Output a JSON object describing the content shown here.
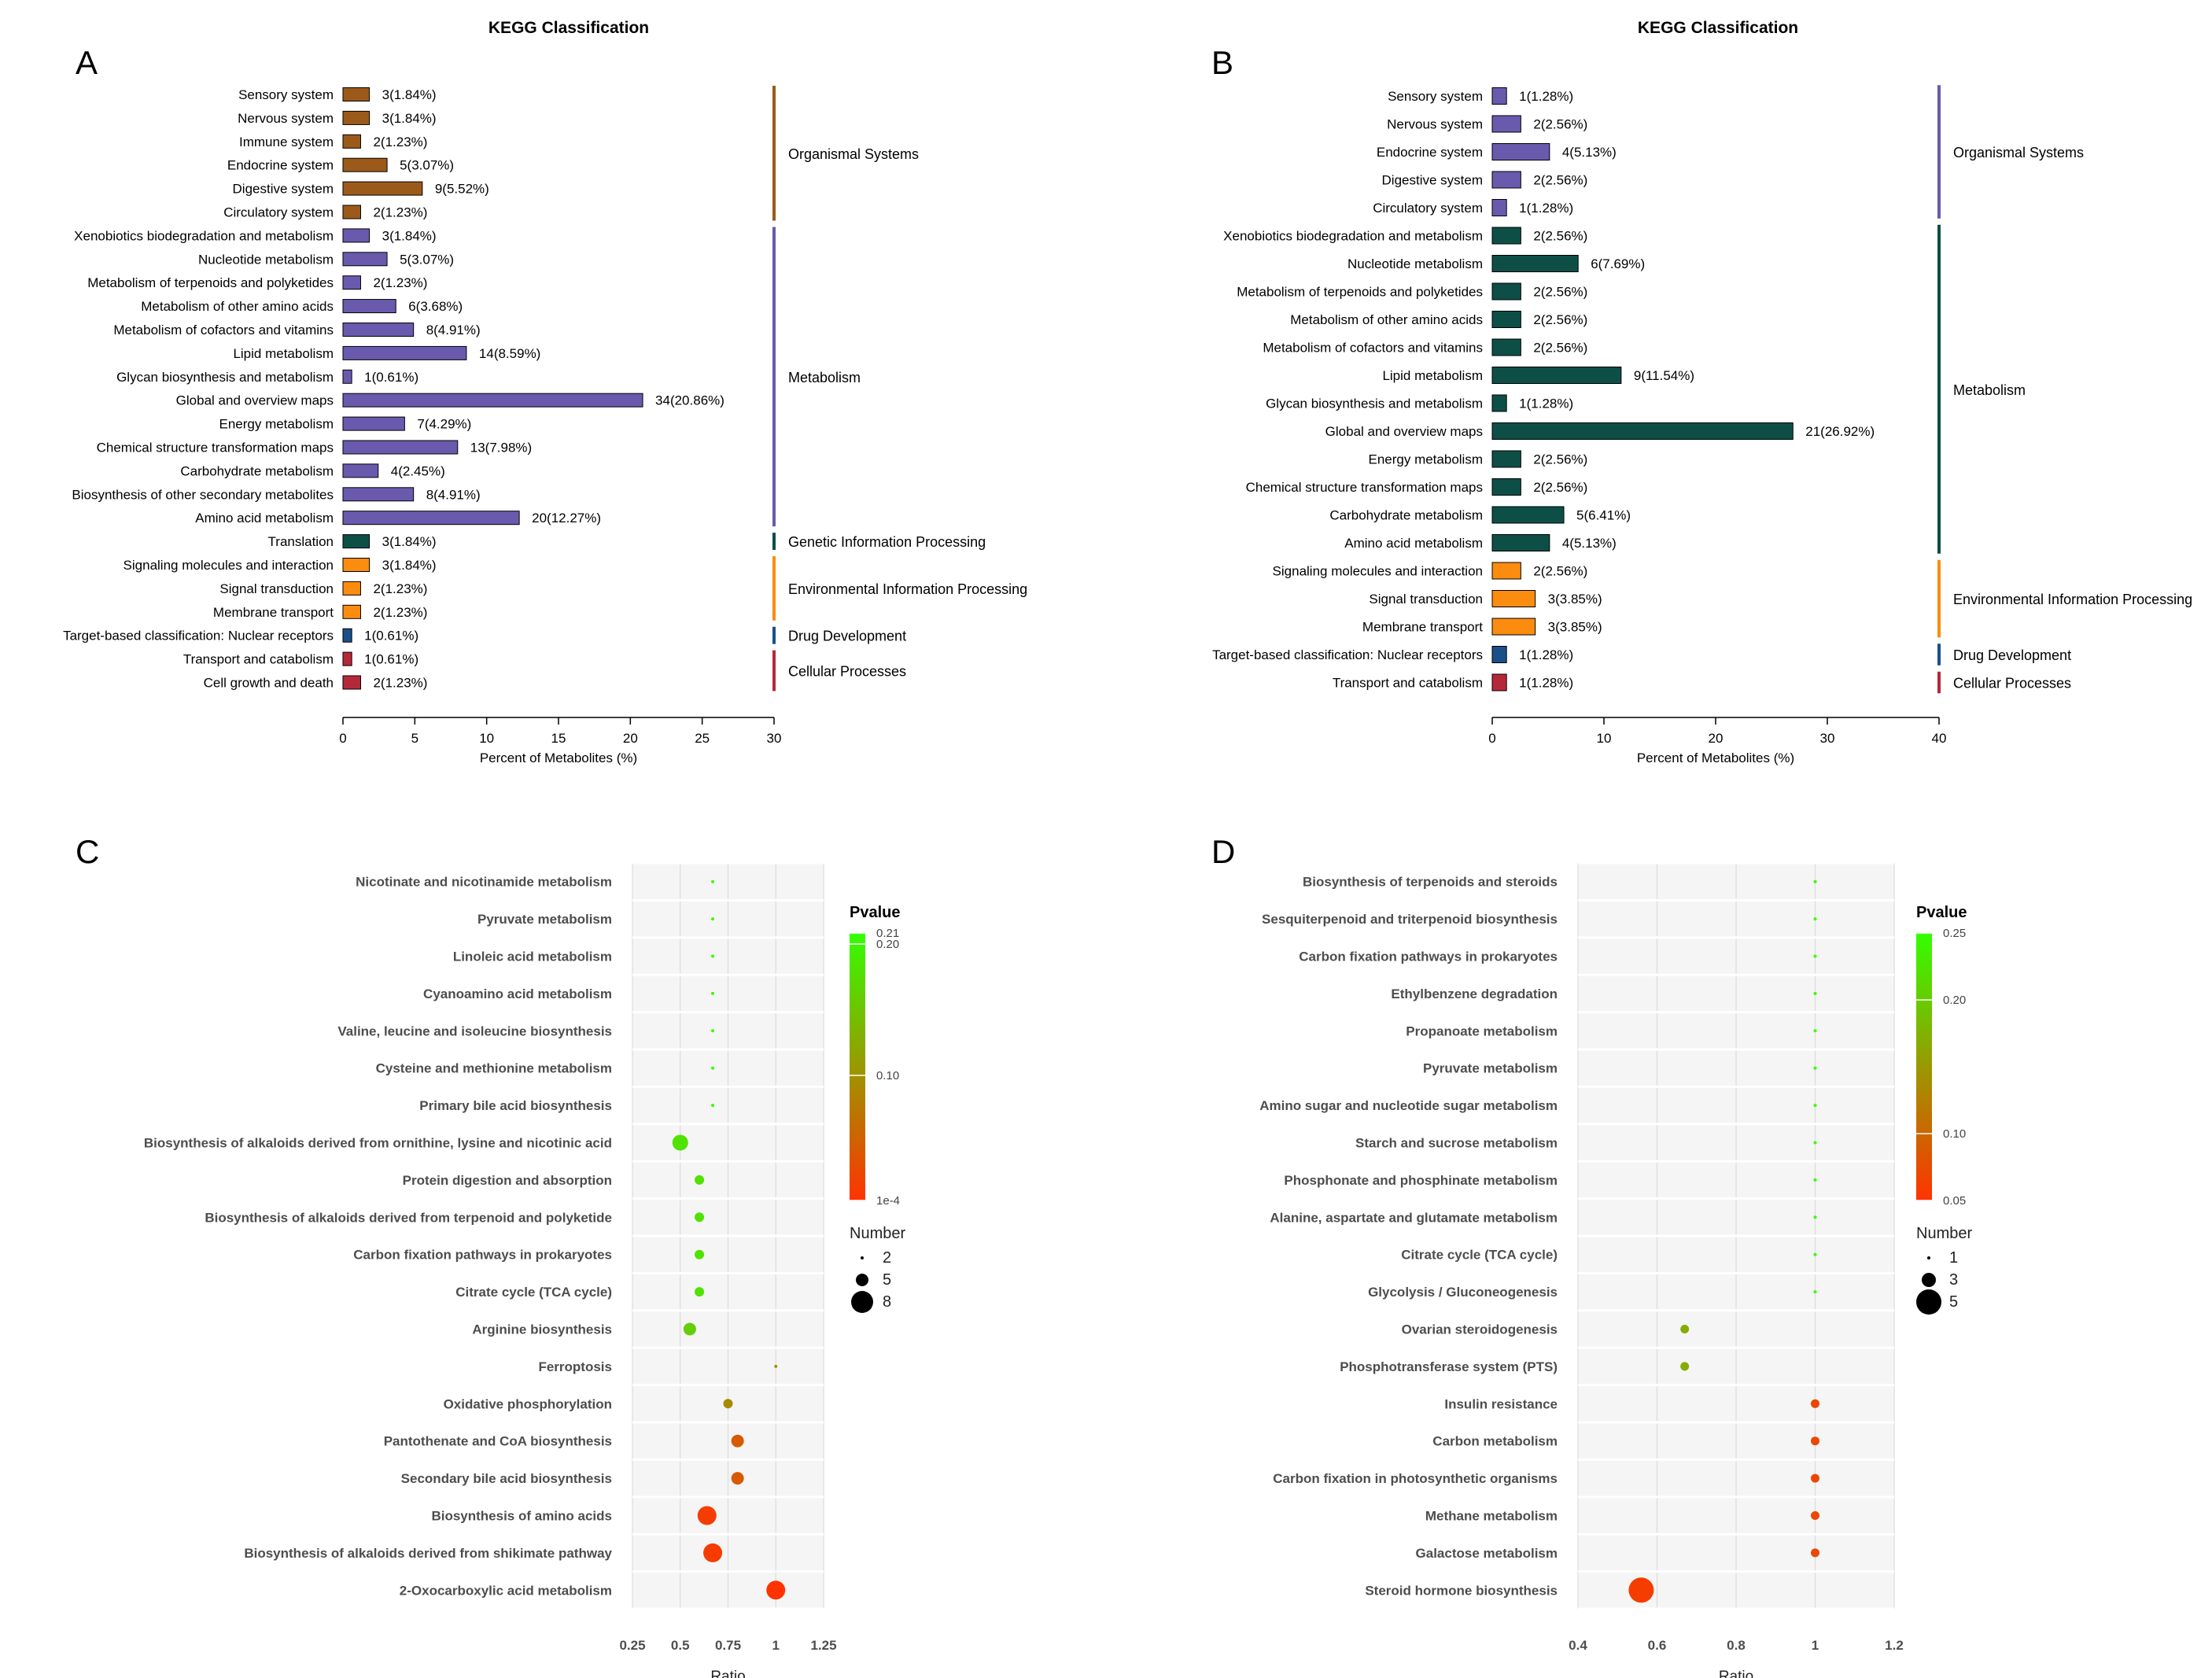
{
  "colors": {
    "organismal_A": "#9b5a1a",
    "metabolism": "#6a5aad",
    "genetic": "#0d4f47",
    "environmental": "#fb8c0f",
    "drug": "#1a4f8a",
    "cellular": "#b5283a",
    "organismal_B": "#6a5aad",
    "metabolism_B": "#0d4f47",
    "panel_bg": "#f5f5f5",
    "grid": "#dcdcdc",
    "pv_high": "#33ff00",
    "pv_mid": "#999900",
    "pv_low": "#ff3300"
  },
  "chart_data": [
    {
      "id": "A",
      "type": "bar",
      "panel_label": "A",
      "title": "KEGG Classification",
      "xlabel": "Percent of Metabolites (%)",
      "xlim": [
        0,
        30
      ],
      "xticks": [
        0,
        5,
        10,
        15,
        20,
        25,
        30
      ],
      "categories": [
        "Sensory system",
        "Nervous system",
        "Immune system",
        "Endocrine system",
        "Digestive system",
        "Circulatory system",
        "Xenobiotics biodegradation and metabolism",
        "Nucleotide metabolism",
        "Metabolism of terpenoids and polyketides",
        "Metabolism of other amino acids",
        "Metabolism of cofactors and vitamins",
        "Lipid metabolism",
        "Glycan biosynthesis and metabolism",
        "Global and overview maps",
        "Energy metabolism",
        "Chemical structure transformation maps",
        "Carbohydrate metabolism",
        "Biosynthesis of other secondary metabolites",
        "Amino acid metabolism",
        "Translation",
        "Signaling molecules and interaction",
        "Signal transduction",
        "Membrane transport",
        "Target-based classification: Nuclear receptors",
        "Transport and catabolism",
        "Cell growth and death"
      ],
      "values": [
        1.84,
        1.84,
        1.23,
        3.07,
        5.52,
        1.23,
        1.84,
        3.07,
        1.23,
        3.68,
        4.91,
        8.59,
        0.61,
        20.86,
        4.29,
        7.98,
        2.45,
        4.91,
        12.27,
        1.84,
        1.84,
        1.23,
        1.23,
        0.61,
        0.61,
        1.23
      ],
      "bar_labels": [
        "3(1.84%)",
        "3(1.84%)",
        "2(1.23%)",
        "5(3.07%)",
        "9(5.52%)",
        "2(1.23%)",
        "3(1.84%)",
        "5(3.07%)",
        "2(1.23%)",
        "6(3.68%)",
        "8(4.91%)",
        "14(8.59%)",
        "1(0.61%)",
        "34(20.86%)",
        "7(4.29%)",
        "13(7.98%)",
        "4(2.45%)",
        "8(4.91%)",
        "20(12.27%)",
        "3(1.84%)",
        "3(1.84%)",
        "2(1.23%)",
        "2(1.23%)",
        "1(0.61%)",
        "1(0.61%)",
        "2(1.23%)"
      ],
      "groups": [
        {
          "name": "Organismal Systems",
          "start": 0,
          "end": 5,
          "color": "#9b5a1a"
        },
        {
          "name": "Metabolism",
          "start": 6,
          "end": 18,
          "color": "#6a5aad"
        },
        {
          "name": "Genetic Information Processing",
          "start": 19,
          "end": 19,
          "color": "#0d4f47"
        },
        {
          "name": "Environmental Information Processing",
          "start": 20,
          "end": 22,
          "color": "#fb8c0f"
        },
        {
          "name": "Drug Development",
          "start": 23,
          "end": 23,
          "color": "#1a4f8a"
        },
        {
          "name": "Cellular Processes",
          "start": 24,
          "end": 25,
          "color": "#b5283a"
        }
      ]
    },
    {
      "id": "B",
      "type": "bar",
      "panel_label": "B",
      "title": "KEGG Classification",
      "xlabel": "Percent of Metabolites (%)",
      "xlim": [
        0,
        40
      ],
      "xticks": [
        0,
        10,
        20,
        30,
        40
      ],
      "categories": [
        "Sensory system",
        "Nervous system",
        "Endocrine system",
        "Digestive system",
        "Circulatory system",
        "Xenobiotics biodegradation and metabolism",
        "Nucleotide metabolism",
        "Metabolism of terpenoids and polyketides",
        "Metabolism of other amino acids",
        "Metabolism of cofactors and vitamins",
        "Lipid metabolism",
        "Glycan biosynthesis and metabolism",
        "Global and overview maps",
        "Energy metabolism",
        "Chemical structure transformation maps",
        "Carbohydrate metabolism",
        "Amino acid metabolism",
        "Signaling molecules and interaction",
        "Signal transduction",
        "Membrane transport",
        "Target-based classification: Nuclear receptors",
        "Transport and catabolism"
      ],
      "values": [
        1.28,
        2.56,
        5.13,
        2.56,
        1.28,
        2.56,
        7.69,
        2.56,
        2.56,
        2.56,
        11.54,
        1.28,
        26.92,
        2.56,
        2.56,
        6.41,
        5.13,
        2.56,
        3.85,
        3.85,
        1.28,
        1.28
      ],
      "bar_labels": [
        "1(1.28%)",
        "2(2.56%)",
        "4(5.13%)",
        "2(2.56%)",
        "1(1.28%)",
        "2(2.56%)",
        "6(7.69%)",
        "2(2.56%)",
        "2(2.56%)",
        "2(2.56%)",
        "9(11.54%)",
        "1(1.28%)",
        "21(26.92%)",
        "2(2.56%)",
        "2(2.56%)",
        "5(6.41%)",
        "4(5.13%)",
        "2(2.56%)",
        "3(3.85%)",
        "3(3.85%)",
        "1(1.28%)",
        "1(1.28%)"
      ],
      "groups": [
        {
          "name": "Organismal Systems",
          "start": 0,
          "end": 4,
          "color": "#6a5aad"
        },
        {
          "name": "Metabolism",
          "start": 5,
          "end": 16,
          "color": "#0d4f47"
        },
        {
          "name": "Environmental Information Processing",
          "start": 17,
          "end": 19,
          "color": "#fb8c0f"
        },
        {
          "name": "Drug Development",
          "start": 20,
          "end": 20,
          "color": "#1a4f8a"
        },
        {
          "name": "Cellular Processes",
          "start": 21,
          "end": 21,
          "color": "#b5283a"
        }
      ]
    },
    {
      "id": "C",
      "type": "scatter",
      "panel_label": "C",
      "xlabel": "Ratio",
      "xlim": [
        0.25,
        1.25
      ],
      "xticks": [
        0.25,
        0.5,
        0.75,
        1,
        1.25
      ],
      "xtick_labels": [
        "0.25",
        "0.5",
        "0.75",
        "1",
        "1.25"
      ],
      "pathways": [
        "Nicotinate and nicotinamide metabolism",
        "Pyruvate metabolism",
        "Linoleic acid metabolism",
        "Cyanoamino acid metabolism",
        "Valine, leucine and isoleucine biosynthesis",
        "Cysteine and methionine metabolism",
        "Primary bile acid biosynthesis",
        "Biosynthesis of alkaloids derived from ornithine, lysine and nicotinic acid",
        "Protein digestion and absorption",
        "Biosynthesis of alkaloids derived from terpenoid and polyketide",
        "Carbon fixation pathways in prokaryotes",
        "Citrate cycle (TCA cycle)",
        "Arginine biosynthesis",
        "Ferroptosis",
        "Oxidative phosphorylation",
        "Pantothenate and CoA biosynthesis",
        "Secondary bile acid biosynthesis",
        "Biosynthesis of amino acids",
        "Biosynthesis of alkaloids derived from shikimate pathway",
        "2-Oxocarboxylic acid metabolism"
      ],
      "ratio": [
        0.67,
        0.67,
        0.67,
        0.67,
        0.67,
        0.67,
        0.67,
        0.5,
        0.6,
        0.6,
        0.6,
        0.6,
        0.55,
        1.0,
        0.75,
        0.8,
        0.8,
        0.64,
        0.67,
        1.0
      ],
      "number": [
        2,
        2,
        2,
        2,
        2,
        2,
        2,
        6,
        4,
        4,
        4,
        4,
        5,
        2,
        4,
        5,
        5,
        7,
        7,
        7
      ],
      "pvalue": [
        0.21,
        0.21,
        0.21,
        0.21,
        0.21,
        0.21,
        0.21,
        0.18,
        0.18,
        0.18,
        0.18,
        0.18,
        0.16,
        0.1,
        0.09,
        0.04,
        0.04,
        0.01,
        0.008,
        0.0001
      ],
      "legend_title": "Pvalue",
      "pvalue_ticks": [
        "0.21",
        "0.20",
        "0.10",
        "1e-4"
      ],
      "pvalue_range": [
        0.0001,
        0.21
      ],
      "number_title": "Number",
      "number_ticks": [
        2,
        5,
        8
      ]
    },
    {
      "id": "D",
      "type": "scatter",
      "panel_label": "D",
      "xlabel": "Ratio",
      "xlim": [
        0.4,
        1.2
      ],
      "xticks": [
        0.4,
        0.6,
        0.8,
        1,
        1.2
      ],
      "xtick_labels": [
        "0.4",
        "0.6",
        "0.8",
        "1",
        "1.2"
      ],
      "pathways": [
        "Biosynthesis of terpenoids and steroids",
        "Sesquiterpenoid and triterpenoid biosynthesis",
        "Carbon fixation pathways in prokaryotes",
        "Ethylbenzene degradation",
        "Propanoate metabolism",
        "Pyruvate metabolism",
        "Amino sugar and nucleotide sugar metabolism",
        "Starch and sucrose metabolism",
        "Phosphonate and phosphinate metabolism",
        "Alanine, aspartate and glutamate metabolism",
        "Citrate cycle (TCA cycle)",
        "Glycolysis / Gluconeogenesis",
        "Ovarian steroidogenesis",
        "Phosphotransferase system (PTS)",
        "Insulin resistance",
        "Carbon metabolism",
        "Carbon fixation in photosynthetic organisms",
        "Methane metabolism",
        "Galactose metabolism",
        "Steroid hormone biosynthesis"
      ],
      "ratio": [
        1,
        1,
        1,
        1,
        1,
        1,
        1,
        1,
        1,
        1,
        1,
        1,
        0.67,
        0.67,
        1,
        1,
        1,
        1,
        1,
        0.56
      ],
      "number": [
        1,
        1,
        1,
        1,
        1,
        1,
        1,
        1,
        1,
        1,
        1,
        1,
        2,
        2,
        2,
        2,
        2,
        2,
        2,
        5
      ],
      "pvalue": [
        0.25,
        0.25,
        0.25,
        0.25,
        0.25,
        0.25,
        0.25,
        0.25,
        0.25,
        0.25,
        0.25,
        0.25,
        0.17,
        0.17,
        0.07,
        0.07,
        0.07,
        0.07,
        0.07,
        0.06
      ],
      "legend_title": "Pvalue",
      "pvalue_ticks": [
        "0.25",
        "0.20",
        "0.10",
        "0.05"
      ],
      "pvalue_range": [
        0.05,
        0.25
      ],
      "number_title": "Number",
      "number_ticks": [
        1,
        3,
        5
      ]
    }
  ]
}
